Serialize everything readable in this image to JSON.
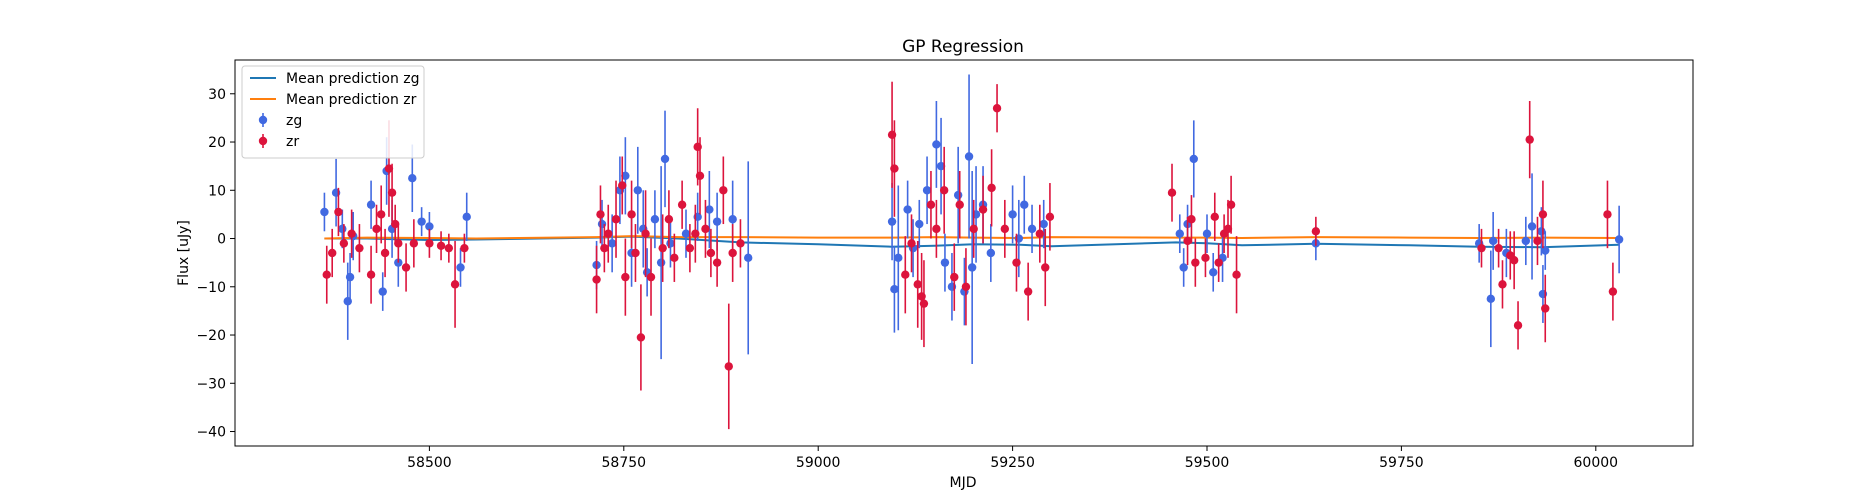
{
  "chart_data": {
    "type": "scatter",
    "title": "GP Regression",
    "xlabel": "MJD",
    "ylabel": "Flux [uJy]",
    "xlim": [
      58250,
      60125
    ],
    "ylim": [
      -43,
      37
    ],
    "xticks": [
      58500,
      58750,
      59000,
      59250,
      59500,
      59750,
      60000
    ],
    "yticks": [
      -40,
      -30,
      -20,
      -10,
      0,
      10,
      20,
      30
    ],
    "grid": false,
    "legend_position": "top-left",
    "colors": {
      "zg_points": "#4169e1",
      "zr_points": "#dc143c",
      "zg_mean": "#1f77b4",
      "zr_mean": "#ff7f0e"
    },
    "lines": [
      {
        "name": "Mean prediction zg",
        "color": "#1f77b4",
        "x": [
          58365,
          58420,
          58500,
          58560,
          58715,
          58760,
          58820,
          58900,
          59000,
          59095,
          59150,
          59200,
          59260,
          59300,
          59460,
          59500,
          59545,
          59640,
          59760,
          59850,
          59930,
          60030
        ],
        "y": [
          0,
          0,
          -0.3,
          -0.2,
          0.2,
          0.4,
          0,
          -0.8,
          -1.2,
          -1.7,
          -1.5,
          -1.2,
          -1.3,
          -1.6,
          -0.8,
          -1,
          -1.4,
          -1.1,
          -1.4,
          -1.7,
          -1.8,
          -1.3
        ]
      },
      {
        "name": "Mean prediction zr",
        "color": "#ff7f0e",
        "x": [
          58365,
          58420,
          58500,
          58560,
          58715,
          58760,
          58820,
          58900,
          59000,
          59095,
          59150,
          59200,
          59260,
          59300,
          59460,
          59500,
          59545,
          59640,
          59760,
          59850,
          59930,
          60030
        ],
        "y": [
          0,
          0.2,
          0.1,
          0,
          0.3,
          0.5,
          0.3,
          0.3,
          0.2,
          0.2,
          0.3,
          0.2,
          0.1,
          0.3,
          0.2,
          0.2,
          0.1,
          0.3,
          0.2,
          0.1,
          0.2,
          0.1
        ]
      }
    ],
    "series": [
      {
        "name": "zg",
        "color": "#4169e1",
        "points": [
          {
            "x": 58365,
            "y": 5.5,
            "err": 4
          },
          {
            "x": 58380,
            "y": 9.5,
            "err": 7
          },
          {
            "x": 58388,
            "y": 2,
            "err": 4
          },
          {
            "x": 58395,
            "y": -13,
            "err": 8
          },
          {
            "x": 58398,
            "y": -8,
            "err": 5
          },
          {
            "x": 58402,
            "y": 0.5,
            "err": 5
          },
          {
            "x": 58425,
            "y": 7,
            "err": 5
          },
          {
            "x": 58440,
            "y": -11,
            "err": 4
          },
          {
            "x": 58445,
            "y": 14,
            "err": 7
          },
          {
            "x": 58452,
            "y": 2,
            "err": 6
          },
          {
            "x": 58460,
            "y": -5,
            "err": 5
          },
          {
            "x": 58478,
            "y": 12.5,
            "err": 7
          },
          {
            "x": 58490,
            "y": 3.5,
            "err": 3
          },
          {
            "x": 58500,
            "y": 2.5,
            "err": 3
          },
          {
            "x": 58540,
            "y": -6,
            "err": 4
          },
          {
            "x": 58548,
            "y": 4.5,
            "err": 5
          },
          {
            "x": 58715,
            "y": -5.5,
            "err": 5
          },
          {
            "x": 58722,
            "y": 3,
            "err": 5
          },
          {
            "x": 58735,
            "y": -1,
            "err": 6
          },
          {
            "x": 58745,
            "y": 10,
            "err": 7
          },
          {
            "x": 58752,
            "y": 13,
            "err": 8
          },
          {
            "x": 58760,
            "y": -3,
            "err": 7
          },
          {
            "x": 58768,
            "y": 10,
            "err": 9
          },
          {
            "x": 58775,
            "y": 2,
            "err": 8
          },
          {
            "x": 58780,
            "y": -7,
            "err": 5
          },
          {
            "x": 58790,
            "y": 4,
            "err": 6
          },
          {
            "x": 58798,
            "y": -5,
            "err": 20
          },
          {
            "x": 58803,
            "y": 16.5,
            "err": 10
          },
          {
            "x": 58810,
            "y": -1,
            "err": 5
          },
          {
            "x": 58830,
            "y": 1,
            "err": 5
          },
          {
            "x": 58845,
            "y": 4.5,
            "err": 5
          },
          {
            "x": 58860,
            "y": 6,
            "err": 8
          },
          {
            "x": 58870,
            "y": 3.5,
            "err": 6
          },
          {
            "x": 58890,
            "y": 4,
            "err": 8
          },
          {
            "x": 58910,
            "y": -4,
            "err": 20
          },
          {
            "x": 59095,
            "y": 3.5,
            "err": 8
          },
          {
            "x": 59098,
            "y": -10.5,
            "err": 9
          },
          {
            "x": 59103,
            "y": -4,
            "err": 15
          },
          {
            "x": 59115,
            "y": 6,
            "err": 6
          },
          {
            "x": 59122,
            "y": -2,
            "err": 6
          },
          {
            "x": 59130,
            "y": 3,
            "err": 5
          },
          {
            "x": 59140,
            "y": 10,
            "err": 7
          },
          {
            "x": 59152,
            "y": 19.5,
            "err": 9
          },
          {
            "x": 59158,
            "y": 15,
            "err": 10
          },
          {
            "x": 59163,
            "y": -5,
            "err": 6
          },
          {
            "x": 59172,
            "y": -10,
            "err": 7
          },
          {
            "x": 59180,
            "y": 9,
            "err": 10
          },
          {
            "x": 59188,
            "y": -11,
            "err": 7
          },
          {
            "x": 59194,
            "y": 17,
            "err": 17
          },
          {
            "x": 59198,
            "y": -6,
            "err": 20
          },
          {
            "x": 59203,
            "y": 5,
            "err": 10
          },
          {
            "x": 59212,
            "y": 7,
            "err": 8
          },
          {
            "x": 59222,
            "y": -3,
            "err": 6
          },
          {
            "x": 59250,
            "y": 5,
            "err": 6
          },
          {
            "x": 59258,
            "y": 0,
            "err": 8
          },
          {
            "x": 59265,
            "y": 7,
            "err": 6
          },
          {
            "x": 59275,
            "y": 2,
            "err": 5
          },
          {
            "x": 59290,
            "y": 3,
            "err": 5
          },
          {
            "x": 59465,
            "y": 1,
            "err": 4
          },
          {
            "x": 59470,
            "y": -6,
            "err": 4
          },
          {
            "x": 59475,
            "y": 3,
            "err": 4
          },
          {
            "x": 59483,
            "y": 16.5,
            "err": 8
          },
          {
            "x": 59500,
            "y": 1,
            "err": 4
          },
          {
            "x": 59508,
            "y": -7,
            "err": 4
          },
          {
            "x": 59520,
            "y": -4,
            "err": 5
          },
          {
            "x": 59640,
            "y": -1,
            "err": 3.5
          },
          {
            "x": 59850,
            "y": -1,
            "err": 4
          },
          {
            "x": 59865,
            "y": -12.5,
            "err": 10
          },
          {
            "x": 59868,
            "y": -0.5,
            "err": 6
          },
          {
            "x": 59885,
            "y": -3,
            "err": 5
          },
          {
            "x": 59910,
            "y": -0.5,
            "err": 5
          },
          {
            "x": 59918,
            "y": 2.5,
            "err": 11
          },
          {
            "x": 59930,
            "y": 1.5,
            "err": 5
          },
          {
            "x": 59932,
            "y": -11.5,
            "err": 6
          },
          {
            "x": 59935,
            "y": -2.5,
            "err": 4
          },
          {
            "x": 60030,
            "y": -0.2,
            "err": 7
          }
        ]
      },
      {
        "name": "zr",
        "color": "#dc143c",
        "points": [
          {
            "x": 58368,
            "y": -7.5,
            "err": 6
          },
          {
            "x": 58375,
            "y": -3,
            "err": 5
          },
          {
            "x": 58383,
            "y": 5.5,
            "err": 5
          },
          {
            "x": 58390,
            "y": -1,
            "err": 4
          },
          {
            "x": 58400,
            "y": 1,
            "err": 5
          },
          {
            "x": 58410,
            "y": -2,
            "err": 5
          },
          {
            "x": 58425,
            "y": -7.5,
            "err": 6
          },
          {
            "x": 58432,
            "y": 2,
            "err": 5
          },
          {
            "x": 58438,
            "y": 5,
            "err": 6
          },
          {
            "x": 58443,
            "y": -3,
            "err": 5
          },
          {
            "x": 58448,
            "y": 14.5,
            "err": 10
          },
          {
            "x": 58452,
            "y": 9.5,
            "err": 6
          },
          {
            "x": 58456,
            "y": 3,
            "err": 4
          },
          {
            "x": 58460,
            "y": -1,
            "err": 4
          },
          {
            "x": 58470,
            "y": -6,
            "err": 5
          },
          {
            "x": 58480,
            "y": -1,
            "err": 5
          },
          {
            "x": 58500,
            "y": -1,
            "err": 3
          },
          {
            "x": 58515,
            "y": -1.5,
            "err": 3
          },
          {
            "x": 58525,
            "y": -2,
            "err": 3
          },
          {
            "x": 58533,
            "y": -9.5,
            "err": 9
          },
          {
            "x": 58545,
            "y": -2,
            "err": 3
          },
          {
            "x": 58715,
            "y": -8.5,
            "err": 7
          },
          {
            "x": 58720,
            "y": 5,
            "err": 6
          },
          {
            "x": 58725,
            "y": -2,
            "err": 5
          },
          {
            "x": 58730,
            "y": 1,
            "err": 6
          },
          {
            "x": 58740,
            "y": 4,
            "err": 8
          },
          {
            "x": 58748,
            "y": 11,
            "err": 6
          },
          {
            "x": 58752,
            "y": -8,
            "err": 8
          },
          {
            "x": 58760,
            "y": 5,
            "err": 7
          },
          {
            "x": 58765,
            "y": -3,
            "err": 6
          },
          {
            "x": 58772,
            "y": -20.5,
            "err": 11
          },
          {
            "x": 58778,
            "y": 1,
            "err": 9
          },
          {
            "x": 58785,
            "y": -8,
            "err": 8
          },
          {
            "x": 58800,
            "y": -2,
            "err": 7
          },
          {
            "x": 58808,
            "y": 4,
            "err": 6
          },
          {
            "x": 58815,
            "y": -4,
            "err": 5
          },
          {
            "x": 58825,
            "y": 7,
            "err": 5
          },
          {
            "x": 58835,
            "y": -2,
            "err": 5
          },
          {
            "x": 58842,
            "y": 1,
            "err": 6
          },
          {
            "x": 58845,
            "y": 19,
            "err": 8
          },
          {
            "x": 58848,
            "y": 13,
            "err": 8
          },
          {
            "x": 58855,
            "y": 2,
            "err": 6
          },
          {
            "x": 58862,
            "y": -3,
            "err": 5
          },
          {
            "x": 58870,
            "y": -5,
            "err": 5
          },
          {
            "x": 58878,
            "y": 10,
            "err": 7
          },
          {
            "x": 58885,
            "y": -26.5,
            "err": 13
          },
          {
            "x": 58890,
            "y": -3,
            "err": 6
          },
          {
            "x": 58900,
            "y": -1,
            "err": 5
          },
          {
            "x": 59095,
            "y": 21.5,
            "err": 11
          },
          {
            "x": 59098,
            "y": 14.5,
            "err": 10
          },
          {
            "x": 59112,
            "y": -7.5,
            "err": 8
          },
          {
            "x": 59120,
            "y": -1,
            "err": 6
          },
          {
            "x": 59128,
            "y": -9.5,
            "err": 9
          },
          {
            "x": 59133,
            "y": -12,
            "err": 9
          },
          {
            "x": 59136,
            "y": -13.5,
            "err": 9
          },
          {
            "x": 59145,
            "y": 7,
            "err": 7
          },
          {
            "x": 59152,
            "y": 2,
            "err": 6
          },
          {
            "x": 59162,
            "y": 10,
            "err": 9
          },
          {
            "x": 59175,
            "y": -8,
            "err": 7
          },
          {
            "x": 59182,
            "y": 7,
            "err": 7
          },
          {
            "x": 59190,
            "y": -10,
            "err": 8
          },
          {
            "x": 59200,
            "y": 2,
            "err": 6
          },
          {
            "x": 59212,
            "y": 6,
            "err": 7
          },
          {
            "x": 59223,
            "y": 10.5,
            "err": 8
          },
          {
            "x": 59230,
            "y": 27,
            "err": 5
          },
          {
            "x": 59240,
            "y": 2,
            "err": 6
          },
          {
            "x": 59255,
            "y": -5,
            "err": 6
          },
          {
            "x": 59270,
            "y": -11,
            "err": 6
          },
          {
            "x": 59285,
            "y": 1,
            "err": 6
          },
          {
            "x": 59292,
            "y": -6,
            "err": 8
          },
          {
            "x": 59298,
            "y": 4.5,
            "err": 7
          },
          {
            "x": 59455,
            "y": 9.5,
            "err": 6
          },
          {
            "x": 59475,
            "y": -0.5,
            "err": 5
          },
          {
            "x": 59480,
            "y": 4,
            "err": 5
          },
          {
            "x": 59485,
            "y": -5,
            "err": 5
          },
          {
            "x": 59498,
            "y": -4,
            "err": 4
          },
          {
            "x": 59510,
            "y": 4.5,
            "err": 5
          },
          {
            "x": 59515,
            "y": -5,
            "err": 4
          },
          {
            "x": 59522,
            "y": 1,
            "err": 4
          },
          {
            "x": 59527,
            "y": 2,
            "err": 6
          },
          {
            "x": 59531,
            "y": 7,
            "err": 6
          },
          {
            "x": 59538,
            "y": -7.5,
            "err": 8
          },
          {
            "x": 59640,
            "y": 1.5,
            "err": 3
          },
          {
            "x": 59853,
            "y": -2,
            "err": 4
          },
          {
            "x": 59875,
            "y": -2,
            "err": 4
          },
          {
            "x": 59880,
            "y": -9.5,
            "err": 5
          },
          {
            "x": 59890,
            "y": -3.5,
            "err": 5
          },
          {
            "x": 59895,
            "y": -4.5,
            "err": 6
          },
          {
            "x": 59900,
            "y": -18,
            "err": 5
          },
          {
            "x": 59915,
            "y": 20.5,
            "err": 8
          },
          {
            "x": 59925,
            "y": -0.5,
            "err": 5
          },
          {
            "x": 59932,
            "y": 5,
            "err": 7
          },
          {
            "x": 59935,
            "y": -14.5,
            "err": 7
          },
          {
            "x": 60015,
            "y": 5,
            "err": 7
          },
          {
            "x": 60022,
            "y": -11,
            "err": 6
          }
        ]
      }
    ],
    "legend": [
      {
        "label": "Mean prediction zg",
        "kind": "line",
        "color": "#1f77b4"
      },
      {
        "label": "Mean prediction zr",
        "kind": "line",
        "color": "#ff7f0e"
      },
      {
        "label": "zg",
        "kind": "errorbar",
        "color": "#4169e1"
      },
      {
        "label": "zr",
        "kind": "errorbar",
        "color": "#dc143c"
      }
    ]
  }
}
